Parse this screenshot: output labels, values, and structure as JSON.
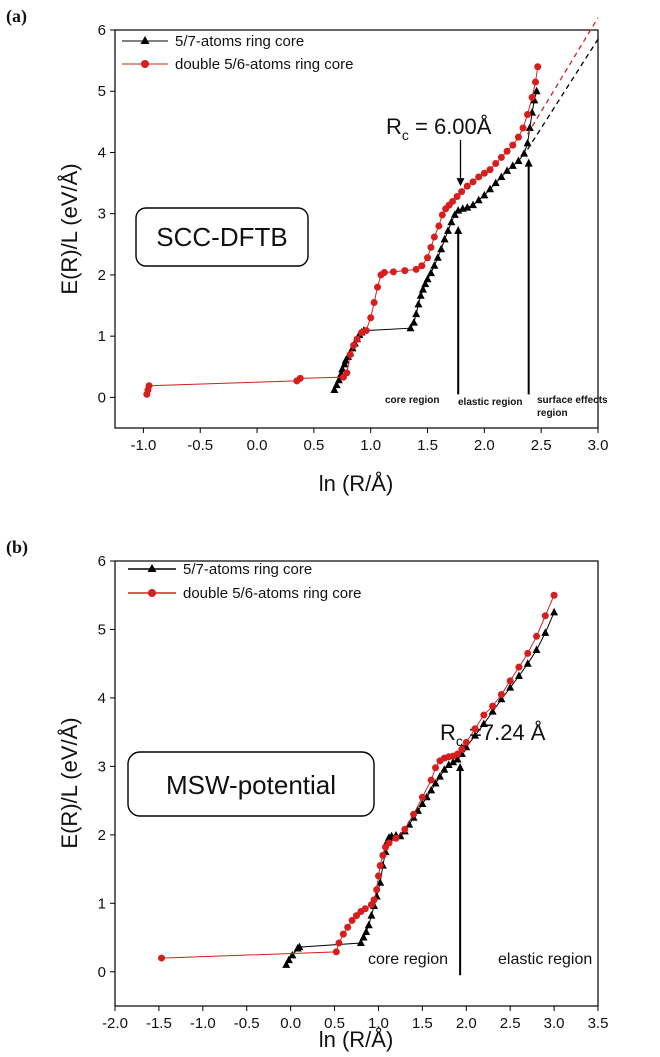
{
  "chart_data": [
    {
      "panel": "(a)",
      "type": "scatter",
      "xlabel": "ln (R/Å)",
      "ylabel": "E(R)/L (eV/Å)",
      "xlim": [
        -1.25,
        3.0
      ],
      "ylim": [
        -0.5,
        6
      ],
      "xticks": [
        "-1.0",
        "-0.5",
        "0.0",
        "0.5",
        "1.0",
        "1.5",
        "2.0",
        "2.5",
        "3.0"
      ],
      "yticks": [
        "0",
        "1",
        "2",
        "3",
        "4",
        "5",
        "6"
      ],
      "legend_position": "top-left",
      "method_label": "SCC-DFTB",
      "annotation": {
        "prefix": "R",
        "sub": "c",
        "suffix": " = 6.00Å",
        "x": 1.79
      },
      "region_labels": [
        "core region",
        "elastic region",
        "surface effects",
        "region"
      ],
      "region_lines_x": [
        1.77,
        2.39
      ],
      "series": [
        {
          "name": "5/7-atoms ring core",
          "color": "#000000",
          "marker": "triangle",
          "points": [
            [
              0.68,
              0.12
            ],
            [
              0.7,
              0.2
            ],
            [
              0.72,
              0.28
            ],
            [
              0.74,
              0.38
            ],
            [
              0.75,
              0.46
            ],
            [
              0.77,
              0.54
            ],
            [
              0.78,
              0.6
            ],
            [
              0.8,
              0.66
            ],
            [
              0.82,
              0.72
            ],
            [
              0.84,
              0.8
            ],
            [
              0.86,
              0.88
            ],
            [
              0.88,
              0.95
            ],
            [
              0.9,
              1.02
            ],
            [
              0.92,
              1.06
            ],
            [
              0.94,
              1.09
            ],
            [
              1.35,
              1.13
            ],
            [
              1.38,
              1.22
            ],
            [
              1.4,
              1.36
            ],
            [
              1.42,
              1.52
            ],
            [
              1.44,
              1.66
            ],
            [
              1.46,
              1.76
            ],
            [
              1.48,
              1.85
            ],
            [
              1.5,
              1.93
            ],
            [
              1.53,
              2.03
            ],
            [
              1.56,
              2.15
            ],
            [
              1.59,
              2.28
            ],
            [
              1.62,
              2.42
            ],
            [
              1.65,
              2.58
            ],
            [
              1.68,
              2.72
            ],
            [
              1.71,
              2.86
            ],
            [
              1.74,
              2.98
            ],
            [
              1.77,
              3.05
            ],
            [
              1.81,
              3.08
            ],
            [
              1.85,
              3.1
            ],
            [
              1.9,
              3.14
            ],
            [
              1.95,
              3.22
            ],
            [
              2.0,
              3.3
            ],
            [
              2.05,
              3.4
            ],
            [
              2.1,
              3.5
            ],
            [
              2.15,
              3.6
            ],
            [
              2.2,
              3.7
            ],
            [
              2.25,
              3.78
            ],
            [
              2.3,
              3.86
            ],
            [
              2.35,
              3.98
            ],
            [
              2.38,
              4.15
            ],
            [
              2.4,
              4.4
            ],
            [
              2.42,
              4.65
            ],
            [
              2.44,
              4.85
            ],
            [
              2.46,
              5.0
            ]
          ]
        },
        {
          "name": "double 5/6-atoms ring core",
          "color": "#d71e1e",
          "marker": "circle",
          "points": [
            [
              -0.97,
              0.05
            ],
            [
              -0.96,
              0.12
            ],
            [
              -0.95,
              0.19
            ],
            [
              0.35,
              0.27
            ],
            [
              0.38,
              0.31
            ],
            [
              0.76,
              0.33
            ],
            [
              0.79,
              0.4
            ],
            [
              0.82,
              0.7
            ],
            [
              0.85,
              0.85
            ],
            [
              0.88,
              0.95
            ],
            [
              0.92,
              1.06
            ],
            [
              0.96,
              1.09
            ],
            [
              1.0,
              1.3
            ],
            [
              1.03,
              1.55
            ],
            [
              1.06,
              1.8
            ],
            [
              1.09,
              2.0
            ],
            [
              1.12,
              2.04
            ],
            [
              1.2,
              2.05
            ],
            [
              1.3,
              2.07
            ],
            [
              1.4,
              2.09
            ],
            [
              1.45,
              2.15
            ],
            [
              1.5,
              2.28
            ],
            [
              1.53,
              2.45
            ],
            [
              1.56,
              2.62
            ],
            [
              1.6,
              2.8
            ],
            [
              1.63,
              2.98
            ],
            [
              1.66,
              3.08
            ],
            [
              1.69,
              3.14
            ],
            [
              1.72,
              3.2
            ],
            [
              1.76,
              3.28
            ],
            [
              1.8,
              3.36
            ],
            [
              1.85,
              3.45
            ],
            [
              1.9,
              3.52
            ],
            [
              1.95,
              3.6
            ],
            [
              2.0,
              3.66
            ],
            [
              2.05,
              3.72
            ],
            [
              2.1,
              3.82
            ],
            [
              2.15,
              3.92
            ],
            [
              2.2,
              4.02
            ],
            [
              2.25,
              4.12
            ],
            [
              2.3,
              4.25
            ],
            [
              2.34,
              4.4
            ],
            [
              2.38,
              4.62
            ],
            [
              2.42,
              4.9
            ],
            [
              2.45,
              5.15
            ],
            [
              2.47,
              5.4
            ]
          ]
        }
      ],
      "extrapolation": [
        {
          "color": "#000000",
          "x": [
            2.38,
            3.0
          ],
          "y": [
            4.05,
            5.85
          ]
        },
        {
          "color": "#d71e1e",
          "x": [
            2.38,
            3.0
          ],
          "y": [
            4.3,
            6.2
          ]
        }
      ]
    },
    {
      "panel": "(b)",
      "type": "scatter",
      "xlabel": "ln (R/Å)",
      "ylabel": "E(R)/L (eV/Å)",
      "xlim": [
        -2.0,
        3.5
      ],
      "ylim": [
        -0.5,
        6
      ],
      "xticks": [
        "-2.0",
        "-1.5",
        "-1.0",
        "-0.5",
        "0.0",
        "0.5",
        "1.0",
        "1.5",
        "2.0",
        "2.5",
        "3.0",
        "3.5"
      ],
      "yticks": [
        "0",
        "1",
        "2",
        "3",
        "4",
        "5",
        "6"
      ],
      "legend_position": "top-left",
      "method_label": "MSW-potential",
      "annotation": {
        "prefix": "R",
        "sub": "c",
        "suffix": " =7.24 Å",
        "x": 1.98
      },
      "region_labels": [
        "core region",
        "elastic region"
      ],
      "region_lines_x": [
        1.93
      ],
      "series": [
        {
          "name": "5/7-atoms ring core",
          "color": "#000000",
          "marker": "triangle",
          "points": [
            [
              -0.05,
              0.1
            ],
            [
              -0.02,
              0.17
            ],
            [
              0.02,
              0.24
            ],
            [
              0.08,
              0.34
            ],
            [
              0.1,
              0.36
            ],
            [
              0.8,
              0.42
            ],
            [
              0.83,
              0.5
            ],
            [
              0.86,
              0.58
            ],
            [
              0.89,
              0.68
            ],
            [
              0.92,
              0.82
            ],
            [
              0.95,
              0.96
            ],
            [
              0.98,
              1.1
            ],
            [
              1.02,
              1.3
            ],
            [
              1.05,
              1.55
            ],
            [
              1.08,
              1.75
            ],
            [
              1.1,
              1.9
            ],
            [
              1.12,
              1.96
            ],
            [
              1.15,
              1.98
            ],
            [
              1.2,
              1.99
            ],
            [
              1.25,
              1.98
            ],
            [
              1.3,
              2.05
            ],
            [
              1.35,
              2.15
            ],
            [
              1.4,
              2.25
            ],
            [
              1.45,
              2.35
            ],
            [
              1.5,
              2.45
            ],
            [
              1.55,
              2.55
            ],
            [
              1.6,
              2.65
            ],
            [
              1.65,
              2.75
            ],
            [
              1.7,
              2.85
            ],
            [
              1.75,
              2.95
            ],
            [
              1.8,
              3.02
            ],
            [
              1.85,
              3.06
            ],
            [
              1.9,
              3.1
            ],
            [
              1.95,
              3.18
            ],
            [
              2.0,
              3.28
            ],
            [
              2.1,
              3.45
            ],
            [
              2.2,
              3.62
            ],
            [
              2.3,
              3.8
            ],
            [
              2.4,
              3.98
            ],
            [
              2.5,
              4.15
            ],
            [
              2.6,
              4.32
            ],
            [
              2.7,
              4.5
            ],
            [
              2.8,
              4.7
            ],
            [
              2.9,
              4.95
            ],
            [
              3.0,
              5.25
            ]
          ]
        },
        {
          "name": "double 5/6-atoms ring core",
          "color": "#d71e1e",
          "marker": "circle",
          "points": [
            [
              -1.47,
              0.2
            ],
            [
              0.52,
              0.29
            ],
            [
              0.55,
              0.42
            ],
            [
              0.6,
              0.55
            ],
            [
              0.65,
              0.65
            ],
            [
              0.7,
              0.75
            ],
            [
              0.75,
              0.82
            ],
            [
              0.8,
              0.88
            ],
            [
              0.85,
              0.92
            ],
            [
              0.92,
              0.98
            ],
            [
              0.95,
              1.05
            ],
            [
              0.98,
              1.2
            ],
            [
              1.0,
              1.4
            ],
            [
              1.02,
              1.55
            ],
            [
              1.05,
              1.7
            ],
            [
              1.08,
              1.82
            ],
            [
              1.12,
              1.88
            ],
            [
              1.2,
              1.95
            ],
            [
              1.3,
              2.08
            ],
            [
              1.4,
              2.3
            ],
            [
              1.5,
              2.55
            ],
            [
              1.6,
              2.8
            ],
            [
              1.65,
              2.98
            ],
            [
              1.7,
              3.08
            ],
            [
              1.75,
              3.12
            ],
            [
              1.8,
              3.14
            ],
            [
              1.85,
              3.15
            ],
            [
              1.9,
              3.18
            ],
            [
              1.95,
              3.25
            ],
            [
              2.0,
              3.35
            ],
            [
              2.1,
              3.55
            ],
            [
              2.2,
              3.75
            ],
            [
              2.3,
              3.88
            ],
            [
              2.4,
              4.05
            ],
            [
              2.5,
              4.25
            ],
            [
              2.6,
              4.45
            ],
            [
              2.7,
              4.65
            ],
            [
              2.8,
              4.9
            ],
            [
              2.9,
              5.2
            ],
            [
              3.0,
              5.5
            ]
          ]
        }
      ]
    }
  ]
}
